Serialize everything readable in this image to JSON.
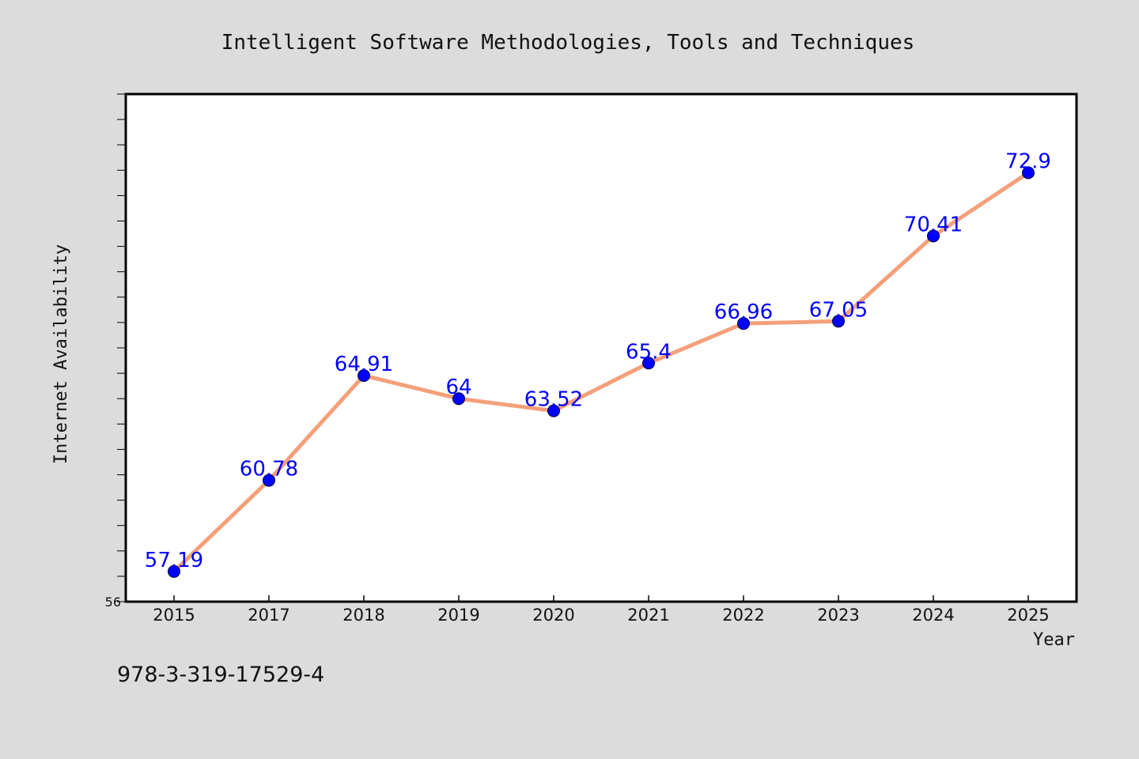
{
  "chart_data": {
    "type": "line",
    "title": "Intelligent Software Methodologies, Tools and Techniques",
    "xlabel": "Year",
    "ylabel": "Internet Availability",
    "categories": [
      "2015",
      "2017",
      "2018",
      "2019",
      "2020",
      "2021",
      "2022",
      "2023",
      "2024",
      "2025"
    ],
    "series": [
      {
        "values": [
          57.19,
          60.78,
          64.91,
          64,
          63.52,
          65.4,
          66.96,
          67.05,
          70.41,
          72.9
        ]
      }
    ],
    "data_labels": [
      "57.19",
      "60.78",
      "64.91",
      "64",
      "63.52",
      "65.4",
      "66.96",
      "67.05",
      "70.41",
      "72.9"
    ],
    "ylim": [
      56,
      76
    ],
    "ytick_labels": [
      "56"
    ],
    "grid": false,
    "line_color": "#f4a07a",
    "marker_color": "#0000ff",
    "label_color": "#0000ff"
  },
  "footer": {
    "isbn": "978-3-319-17529-4"
  }
}
